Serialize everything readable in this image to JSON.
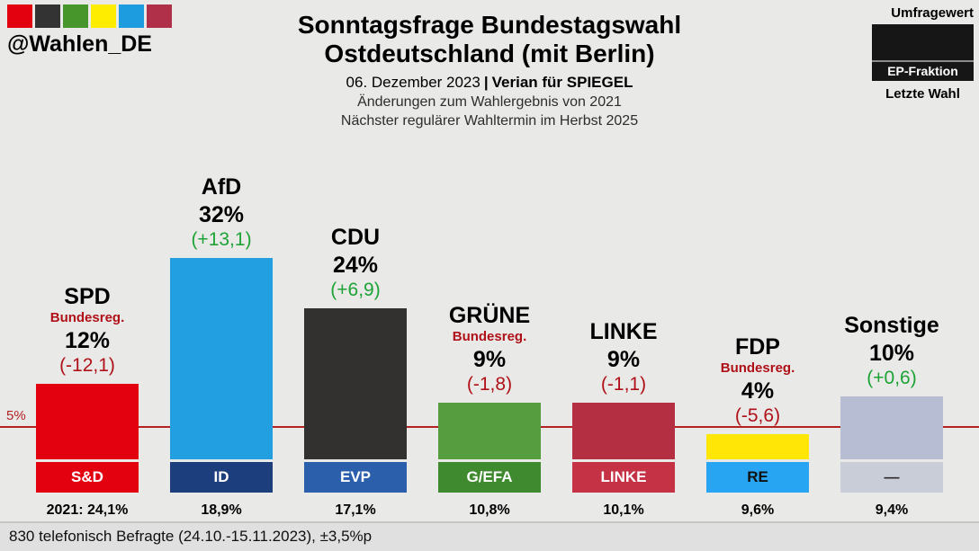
{
  "brand": {
    "handle": "@Wahlen_DE",
    "palette": [
      "#e3000f",
      "#333333",
      "#46962b",
      "#ffed00",
      "#1e9ce0",
      "#b0304a"
    ]
  },
  "header": {
    "title_line1": "Sonntagsfrage Bundestagswahl",
    "title_line2": "Ostdeutschland (mit Berlin)",
    "date": "06. Dezember 2023",
    "separator": "|",
    "source": "Verian für SPIEGEL",
    "subtitle1": "Änderungen zum Wahlergebnis von 2021",
    "subtitle2": "Nächster regulärer Wahltermin im Herbst 2025"
  },
  "legend": {
    "poll_label": "Umfragewert",
    "ep_label": "EP-Fraktion",
    "last_label": "Letzte Wahl"
  },
  "threshold": {
    "label": "5%",
    "value": 5
  },
  "footer": {
    "text": "830 telefonisch Befragte (24.10.-15.11.2023), ±3,5%p"
  },
  "colors": {
    "positive": "#1da335",
    "negative": "#b01018",
    "note": "#b01018",
    "threshold": "#b22222",
    "background": "#e9e9e8"
  },
  "chart_data": {
    "type": "bar",
    "title": "Sonntagsfrage Bundestagswahl Ostdeutschland (mit Berlin)",
    "categories": [
      "SPD",
      "AfD",
      "CDU",
      "GRÜNE",
      "LINKE",
      "FDP",
      "Sonstige"
    ],
    "values": [
      12,
      32,
      24,
      9,
      9,
      4,
      10
    ],
    "changes": [
      -12.1,
      13.1,
      6.9,
      -1.8,
      -1.1,
      -5.6,
      0.6
    ],
    "last_election": [
      24.1,
      18.9,
      17.1,
      10.8,
      10.1,
      9.6,
      9.4
    ],
    "ep_groups": [
      "S&D",
      "ID",
      "EVP",
      "G/EFA",
      "LINKE",
      "RE",
      "—"
    ],
    "threshold_line": 5,
    "parties": [
      {
        "name": "SPD",
        "note": "Bundesreg.",
        "value": 12,
        "value_label": "12%",
        "change": -12.1,
        "change_label": "(-12,1)",
        "ep_group": "S&D",
        "last": 24.1,
        "last_label": "2021: 24,1%",
        "bar_color": "#e3000f",
        "band_color": "#e3000f",
        "band_text_color": "#ffffff"
      },
      {
        "name": "AfD",
        "note": null,
        "value": 32,
        "value_label": "32%",
        "change": 13.1,
        "change_label": "(+13,1)",
        "ep_group": "ID",
        "last": 18.9,
        "last_label": "18,9%",
        "bar_color": "#219fe0",
        "band_color": "#1d3e7d",
        "band_text_color": "#ffffff"
      },
      {
        "name": "CDU",
        "note": null,
        "value": 24,
        "value_label": "24%",
        "change": 6.9,
        "change_label": "(+6,9)",
        "ep_group": "EVP",
        "last": 17.1,
        "last_label": "17,1%",
        "bar_color": "#32312f",
        "band_color": "#2b5fab",
        "band_text_color": "#ffffff"
      },
      {
        "name": "GRÜNE",
        "note": "Bundesreg.",
        "value": 9,
        "value_label": "9%",
        "change": -1.8,
        "change_label": "(-1,8)",
        "ep_group": "G/EFA",
        "last": 10.8,
        "last_label": "10,8%",
        "bar_color": "#569d3f",
        "band_color": "#3f8a2f",
        "band_text_color": "#ffffff"
      },
      {
        "name": "LINKE",
        "note": null,
        "value": 9,
        "value_label": "9%",
        "change": -1.1,
        "change_label": "(-1,1)",
        "ep_group": "LINKE",
        "last": 10.1,
        "last_label": "10,1%",
        "bar_color": "#b52f43",
        "band_color": "#c53246",
        "band_text_color": "#ffffff"
      },
      {
        "name": "FDP",
        "note": "Bundesreg.",
        "value": 4,
        "value_label": "4%",
        "change": -5.6,
        "change_label": "(-5,6)",
        "ep_group": "RE",
        "last": 9.6,
        "last_label": "9,6%",
        "bar_color": "#ffe606",
        "band_color": "#27a4f2",
        "band_text_color": "#101010"
      },
      {
        "name": "Sonstige",
        "note": null,
        "value": 10,
        "value_label": "10%",
        "change": 0.6,
        "change_label": "(+0,6)",
        "ep_group": "—",
        "last": 9.4,
        "last_label": "9,4%",
        "bar_color": "#b7bed4",
        "band_color": "#c9cdd8",
        "band_text_color": "#2a2a2a"
      }
    ]
  }
}
